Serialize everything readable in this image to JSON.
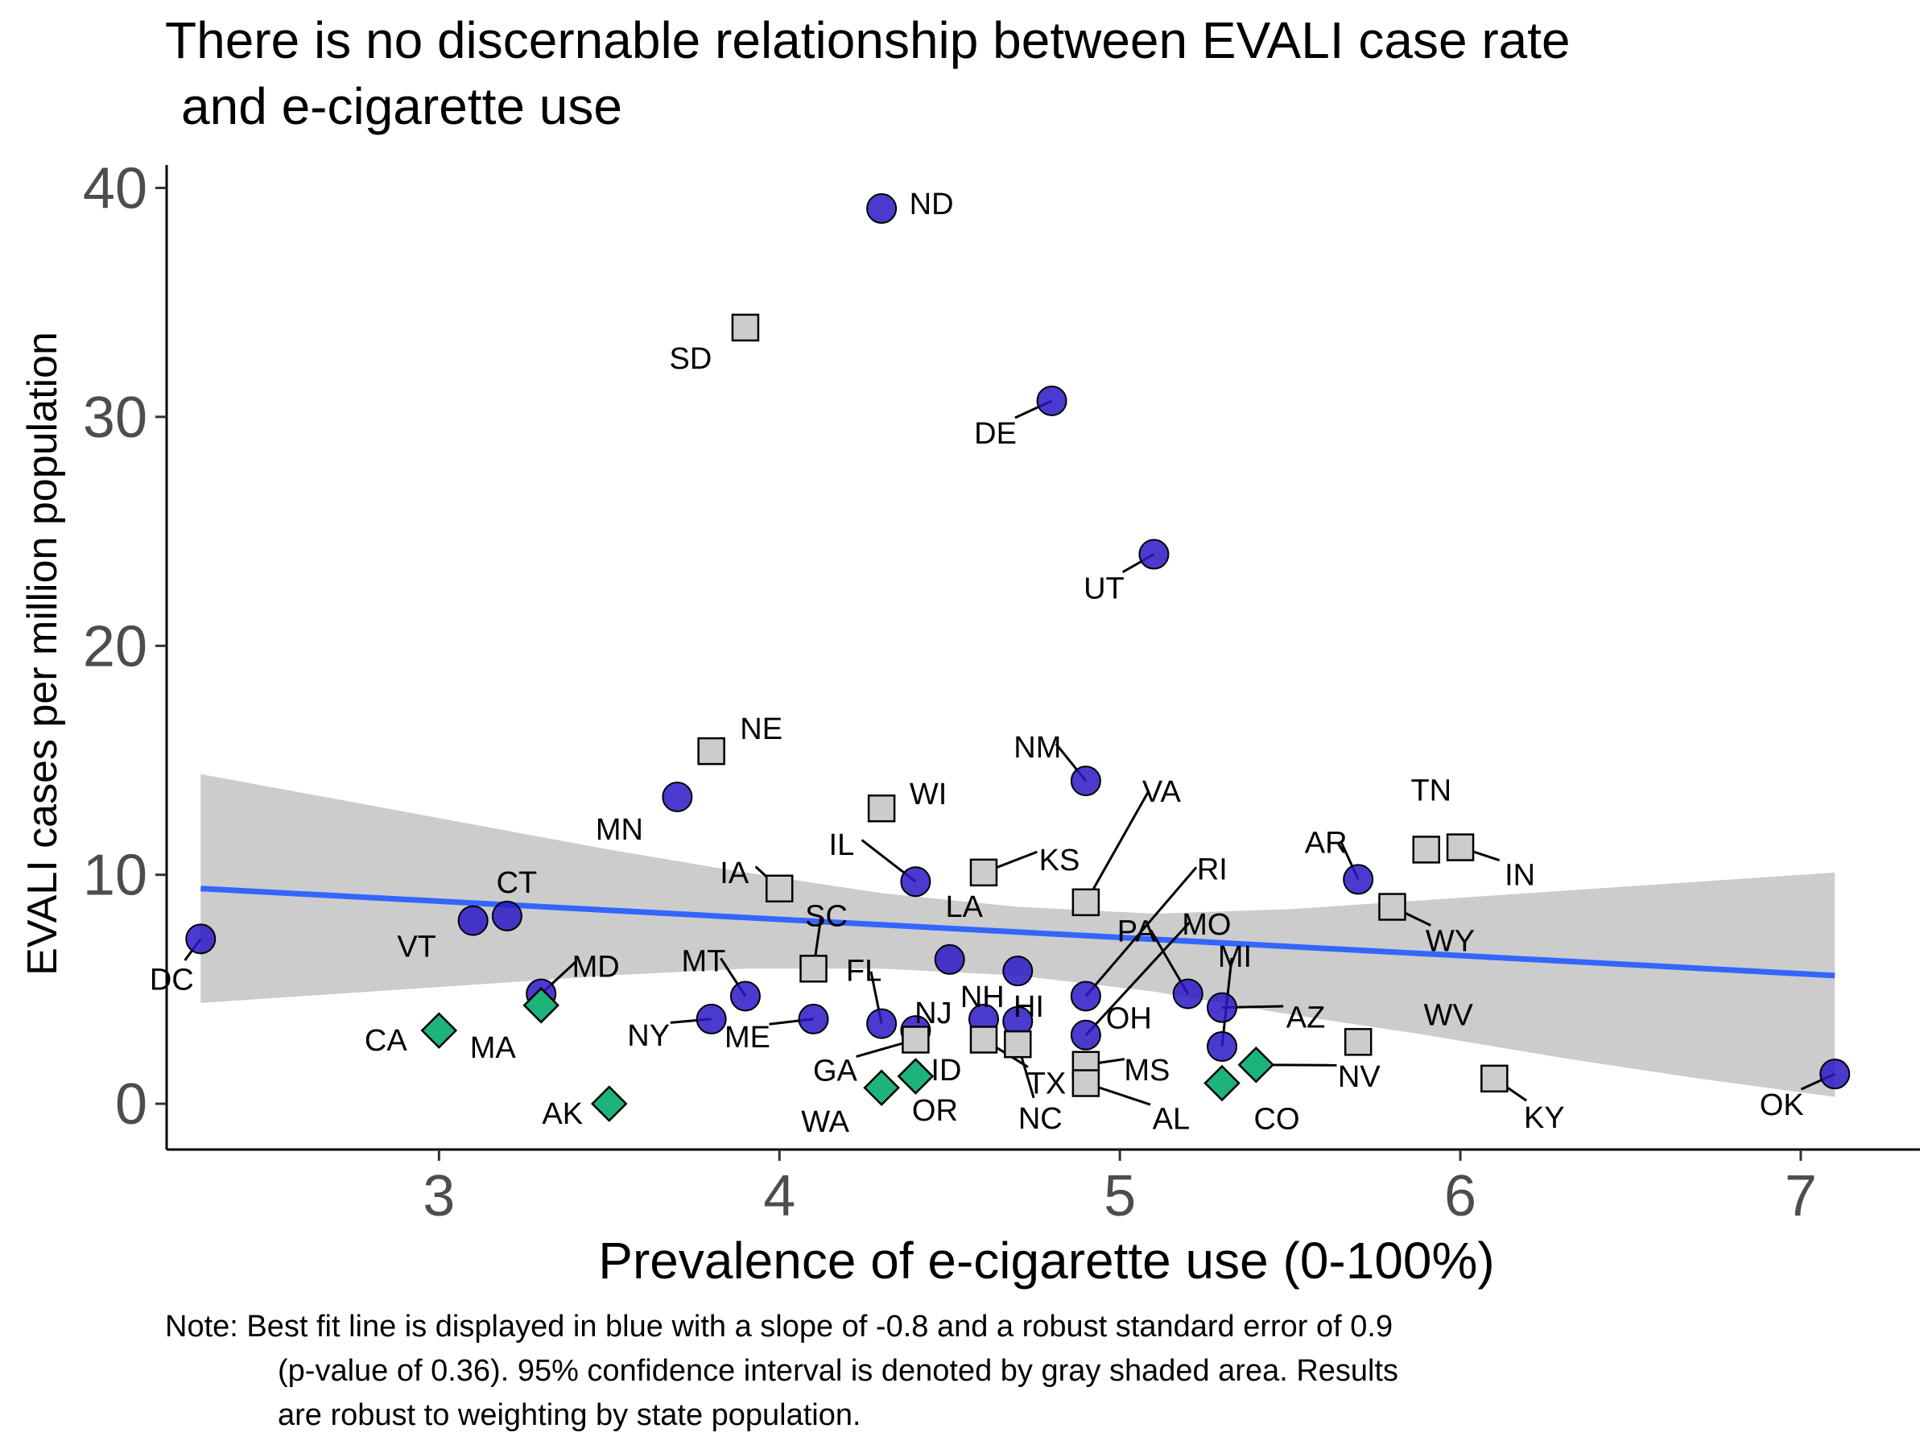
{
  "chart_data": {
    "type": "scatter",
    "title_line1": "There is no discernable relationship between EVALI case rate",
    "title_line2": "and e-cigarette use",
    "xlabel": "Prevalence of e-cigarette use (0-100%)",
    "ylabel": "EVALI cases per million population",
    "xlim": [
      2.2,
      7.35
    ],
    "ylim": [
      -2,
      41
    ],
    "xticks": [
      3,
      4,
      5,
      6,
      7
    ],
    "yticks": [
      0,
      10,
      20,
      30,
      40
    ],
    "grid": false,
    "note_lines": [
      "Note: Best fit line is displayed in blue with a slope of -0.8 and a robust standard error of 0.9",
      "(p-value of 0.36). 95% confidence interval is denoted by gray shaded area. Results",
      "are robust to weighting by state population."
    ],
    "fit_line": {
      "x": [
        2.3,
        7.1
      ],
      "y": [
        9.4,
        5.6
      ],
      "color": "#3366ff"
    },
    "confidence_band": {
      "x": [
        2.3,
        2.7,
        3.1,
        3.5,
        3.9,
        4.3,
        4.7,
        5.1,
        5.5,
        5.9,
        6.3,
        6.7,
        7.1
      ],
      "lower": [
        4.4,
        4.8,
        5.2,
        5.6,
        5.9,
        5.9,
        5.6,
        4.9,
        3.9,
        3.0,
        2.0,
        1.1,
        0.3
      ],
      "upper": [
        14.4,
        13.3,
        12.2,
        11.1,
        10.1,
        9.2,
        8.6,
        8.3,
        8.5,
        8.9,
        9.3,
        9.7,
        10.1
      ],
      "color": "#cccccc"
    },
    "marker_colors": {
      "circle": "#2b18c6",
      "square": "#cccccc",
      "diamond": "#1db47c"
    },
    "points": [
      {
        "state": "ND",
        "x": 4.3,
        "y": 39.1,
        "shape": "circle"
      },
      {
        "state": "SD",
        "x": 3.9,
        "y": 33.9,
        "shape": "square"
      },
      {
        "state": "DE",
        "x": 4.8,
        "y": 30.7,
        "shape": "circle"
      },
      {
        "state": "UT",
        "x": 5.1,
        "y": 24.0,
        "shape": "circle"
      },
      {
        "state": "NE",
        "x": 3.8,
        "y": 15.4,
        "shape": "square"
      },
      {
        "state": "NM",
        "x": 4.9,
        "y": 14.1,
        "shape": "circle"
      },
      {
        "state": "MN",
        "x": 3.7,
        "y": 13.4,
        "shape": "circle"
      },
      {
        "state": "WI",
        "x": 4.3,
        "y": 12.9,
        "shape": "square"
      },
      {
        "state": "TN",
        "x": 5.9,
        "y": 11.1,
        "shape": "square"
      },
      {
        "state": "IN",
        "x": 6.0,
        "y": 11.2,
        "shape": "square"
      },
      {
        "state": "KS",
        "x": 4.6,
        "y": 10.1,
        "shape": "square"
      },
      {
        "state": "AR",
        "x": 5.7,
        "y": 9.8,
        "shape": "circle"
      },
      {
        "state": "IL",
        "x": 4.4,
        "y": 9.7,
        "shape": "circle"
      },
      {
        "state": "IA",
        "x": 4.0,
        "y": 9.4,
        "shape": "square"
      },
      {
        "state": "VA",
        "x": 4.9,
        "y": 8.8,
        "shape": "square"
      },
      {
        "state": "WY",
        "x": 5.8,
        "y": 8.6,
        "shape": "square"
      },
      {
        "state": "CT",
        "x": 3.2,
        "y": 8.2,
        "shape": "circle"
      },
      {
        "state": "VT",
        "x": 3.1,
        "y": 8.0,
        "shape": "circle"
      },
      {
        "state": "DC",
        "x": 2.3,
        "y": 7.2,
        "shape": "circle"
      },
      {
        "state": "LA",
        "x": 4.5,
        "y": 6.3,
        "shape": "circle"
      },
      {
        "state": "SC",
        "x": 4.1,
        "y": 5.9,
        "shape": "square"
      },
      {
        "state": "NH",
        "x": 4.7,
        "y": 5.8,
        "shape": "circle"
      },
      {
        "state": "MD",
        "x": 3.3,
        "y": 4.8,
        "shape": "circle"
      },
      {
        "state": "MT",
        "x": 3.9,
        "y": 4.7,
        "shape": "circle"
      },
      {
        "state": "RI",
        "x": 4.9,
        "y": 4.7,
        "shape": "circle"
      },
      {
        "state": "PA",
        "x": 5.2,
        "y": 4.8,
        "shape": "circle"
      },
      {
        "state": "MA",
        "x": 3.3,
        "y": 4.3,
        "shape": "diamond"
      },
      {
        "state": "AZ",
        "x": 5.3,
        "y": 4.2,
        "shape": "circle"
      },
      {
        "state": "NY",
        "x": 3.8,
        "y": 3.7,
        "shape": "circle"
      },
      {
        "state": "ME",
        "x": 4.1,
        "y": 3.7,
        "shape": "circle"
      },
      {
        "state": "FL",
        "x": 4.3,
        "y": 3.5,
        "shape": "circle"
      },
      {
        "state": "HI",
        "x": 4.6,
        "y": 3.7,
        "shape": "circle"
      },
      {
        "state": "OH",
        "x": 4.7,
        "y": 3.6,
        "shape": "circle"
      },
      {
        "state": "NJ",
        "x": 4.4,
        "y": 3.2,
        "shape": "circle"
      },
      {
        "state": "CA",
        "x": 3.0,
        "y": 3.2,
        "shape": "diamond"
      },
      {
        "state": "MO",
        "x": 4.9,
        "y": 3.0,
        "shape": "circle"
      },
      {
        "state": "GA",
        "x": 4.4,
        "y": 2.8,
        "shape": "square"
      },
      {
        "state": "TX",
        "x": 4.6,
        "y": 2.8,
        "shape": "square"
      },
      {
        "state": "NC",
        "x": 4.7,
        "y": 2.6,
        "shape": "square"
      },
      {
        "state": "WV",
        "x": 5.7,
        "y": 2.7,
        "shape": "square"
      },
      {
        "state": "MI",
        "x": 5.3,
        "y": 2.5,
        "shape": "circle"
      },
      {
        "state": "MS",
        "x": 4.9,
        "y": 1.7,
        "shape": "square"
      },
      {
        "state": "NV",
        "x": 5.4,
        "y": 1.7,
        "shape": "diamond"
      },
      {
        "state": "OK",
        "x": 7.1,
        "y": 1.3,
        "shape": "circle"
      },
      {
        "state": "ID",
        "x": 4.4,
        "y": 1.2,
        "shape": "diamond"
      },
      {
        "state": "KY",
        "x": 6.1,
        "y": 1.1,
        "shape": "square"
      },
      {
        "state": "AL",
        "x": 4.9,
        "y": 0.9,
        "shape": "square"
      },
      {
        "state": "CO",
        "x": 5.3,
        "y": 0.9,
        "shape": "diamond"
      },
      {
        "state": "WA",
        "x": 4.3,
        "y": 0.7,
        "shape": "diamond"
      },
      {
        "state": "OR",
        "x": 4.4,
        "y": 1.2,
        "shape": "diamond"
      },
      {
        "state": "AK",
        "x": 3.5,
        "y": 0.0,
        "shape": "diamond"
      }
    ]
  }
}
